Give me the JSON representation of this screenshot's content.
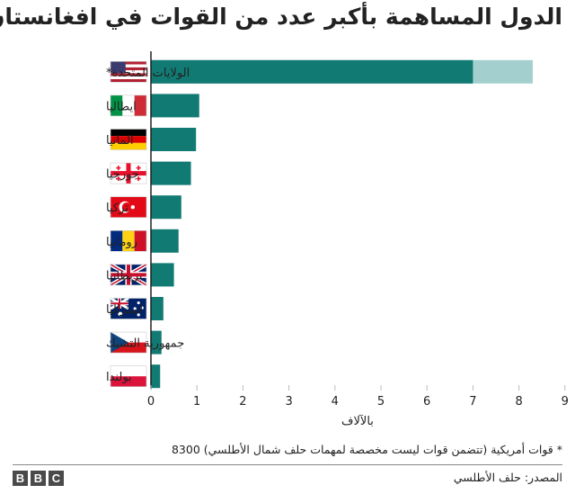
{
  "title": "الدول المساهمة بأكبر عدد من القوات في  افغانستان",
  "note": "* قوات أمريكية (تتضمن قوات ليست مخصصة لمهمات حلف شمال الأطلسي) 8300",
  "source": "المصدر: حلف الأطلسي",
  "logo": [
    "B",
    "B",
    "C"
  ],
  "colors": {
    "bar": "#117a73",
    "bar_extra": "#a3d0ce",
    "axis": "#222222",
    "grid": "#bbbbbb"
  },
  "chart_data": {
    "type": "bar",
    "orientation": "horizontal",
    "title": "الدول المساهمة بأكبر عدد من القوات في  افغانستان",
    "xlabel": "بالآلاف",
    "ylabel": "",
    "xlim": [
      0,
      9
    ],
    "xticks": [
      "0",
      "1",
      "2",
      "3",
      "4",
      "5",
      "6",
      "7",
      "8",
      "9"
    ],
    "grid": false,
    "categories": [
      "الولايات المتحدة*",
      "ايطاليا",
      "المانيا",
      "جورجيا",
      "تركيا",
      "رومانيا",
      "بريطانيا",
      "استراليا",
      "جمهورية التشيك",
      "بولندا"
    ],
    "flags": [
      "usa-flag-icon",
      "italy-flag-icon",
      "germany-flag-icon",
      "georgia-flag-icon",
      "turkey-flag-icon",
      "romania-flag-icon",
      "uk-flag-icon",
      "australia-flag-icon",
      "czech-flag-icon",
      "poland-flag-icon"
    ],
    "values": [
      7.0,
      1.05,
      0.98,
      0.87,
      0.66,
      0.6,
      0.5,
      0.27,
      0.23,
      0.2
    ],
    "us_total": 8.3
  }
}
